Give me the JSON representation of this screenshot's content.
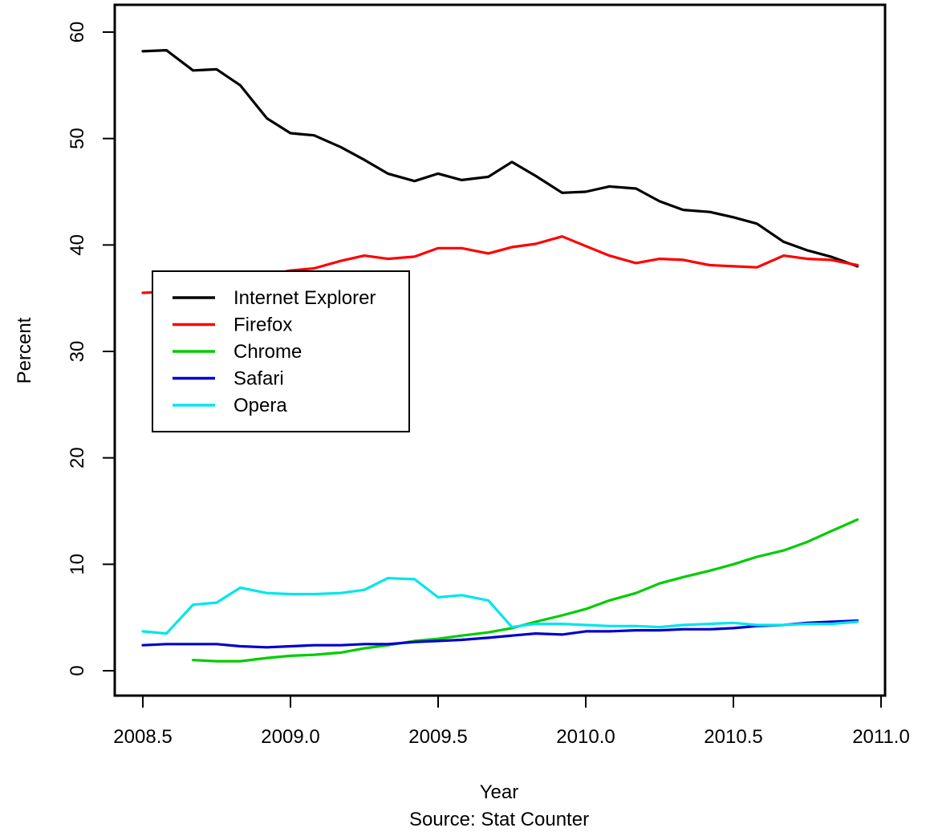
{
  "chart_data": {
    "type": "line",
    "xlabel": "Year",
    "ylabel": "Percent",
    "source": "Source: Stat Counter",
    "xlim": [
      2008.5,
      2011.0
    ],
    "ylim": [
      0,
      60
    ],
    "x_ticks": [
      2008.5,
      2009.0,
      2009.5,
      2010.0,
      2010.5,
      2011.0
    ],
    "x_tick_labels": [
      "2008.5",
      "2009.0",
      "2009.5",
      "2010.0",
      "2010.5",
      "2011.0"
    ],
    "y_ticks": [
      0,
      10,
      20,
      30,
      40,
      50,
      60
    ],
    "y_tick_labels": [
      "0",
      "10",
      "20",
      "30",
      "40",
      "50",
      "60"
    ],
    "grid": false,
    "legend_position": "upper-left",
    "series": [
      {
        "name": "Internet Explorer",
        "color": "#000000",
        "points": [
          [
            2008.5,
            58.2
          ],
          [
            2008.58,
            58.3
          ],
          [
            2008.67,
            56.4
          ],
          [
            2008.75,
            56.5
          ],
          [
            2008.83,
            55.0
          ],
          [
            2008.92,
            51.9
          ],
          [
            2009.0,
            50.5
          ],
          [
            2009.08,
            50.3
          ],
          [
            2009.17,
            49.2
          ],
          [
            2009.25,
            48.0
          ],
          [
            2009.33,
            46.7
          ],
          [
            2009.42,
            46.0
          ],
          [
            2009.5,
            46.7
          ],
          [
            2009.58,
            46.1
          ],
          [
            2009.67,
            46.4
          ],
          [
            2009.75,
            47.8
          ],
          [
            2009.83,
            46.5
          ],
          [
            2009.92,
            44.9
          ],
          [
            2010.0,
            45.0
          ],
          [
            2010.08,
            45.5
          ],
          [
            2010.17,
            45.3
          ],
          [
            2010.25,
            44.1
          ],
          [
            2010.33,
            43.3
          ],
          [
            2010.42,
            43.1
          ],
          [
            2010.5,
            42.6
          ],
          [
            2010.58,
            42.0
          ],
          [
            2010.67,
            40.3
          ],
          [
            2010.75,
            39.5
          ],
          [
            2010.83,
            38.9
          ],
          [
            2010.92,
            38.0
          ]
        ]
      },
      {
        "name": "Firefox",
        "color": "#ff0000",
        "points": [
          [
            2008.5,
            35.5
          ],
          [
            2008.58,
            35.6
          ],
          [
            2008.67,
            35.9
          ],
          [
            2008.75,
            36.2
          ],
          [
            2008.83,
            36.8
          ],
          [
            2008.92,
            37.2
          ],
          [
            2009.0,
            37.6
          ],
          [
            2009.08,
            37.8
          ],
          [
            2009.17,
            38.5
          ],
          [
            2009.25,
            39.0
          ],
          [
            2009.33,
            38.7
          ],
          [
            2009.42,
            38.9
          ],
          [
            2009.5,
            39.7
          ],
          [
            2009.58,
            39.7
          ],
          [
            2009.67,
            39.2
          ],
          [
            2009.75,
            39.8
          ],
          [
            2009.83,
            40.1
          ],
          [
            2009.92,
            40.8
          ],
          [
            2010.0,
            39.9
          ],
          [
            2010.08,
            39.0
          ],
          [
            2010.17,
            38.3
          ],
          [
            2010.25,
            38.7
          ],
          [
            2010.33,
            38.6
          ],
          [
            2010.42,
            38.1
          ],
          [
            2010.5,
            38.0
          ],
          [
            2010.58,
            37.9
          ],
          [
            2010.67,
            39.0
          ],
          [
            2010.75,
            38.7
          ],
          [
            2010.83,
            38.6
          ],
          [
            2010.92,
            38.1
          ]
        ]
      },
      {
        "name": "Chrome",
        "color": "#00cc00",
        "points": [
          [
            2008.67,
            1.0
          ],
          [
            2008.75,
            0.9
          ],
          [
            2008.83,
            0.9
          ],
          [
            2008.92,
            1.2
          ],
          [
            2009.0,
            1.4
          ],
          [
            2009.08,
            1.5
          ],
          [
            2009.17,
            1.7
          ],
          [
            2009.25,
            2.1
          ],
          [
            2009.33,
            2.4
          ],
          [
            2009.42,
            2.8
          ],
          [
            2009.5,
            3.0
          ],
          [
            2009.58,
            3.3
          ],
          [
            2009.67,
            3.6
          ],
          [
            2009.75,
            4.0
          ],
          [
            2009.83,
            4.6
          ],
          [
            2009.92,
            5.2
          ],
          [
            2010.0,
            5.8
          ],
          [
            2010.08,
            6.6
          ],
          [
            2010.17,
            7.3
          ],
          [
            2010.25,
            8.2
          ],
          [
            2010.33,
            8.8
          ],
          [
            2010.42,
            9.4
          ],
          [
            2010.5,
            10.0
          ],
          [
            2010.58,
            10.7
          ],
          [
            2010.67,
            11.3
          ],
          [
            2010.75,
            12.1
          ],
          [
            2010.83,
            13.1
          ],
          [
            2010.92,
            14.2
          ]
        ]
      },
      {
        "name": "Safari",
        "color": "#0000cc",
        "points": [
          [
            2008.5,
            2.4
          ],
          [
            2008.58,
            2.5
          ],
          [
            2008.67,
            2.5
          ],
          [
            2008.75,
            2.5
          ],
          [
            2008.83,
            2.3
          ],
          [
            2008.92,
            2.2
          ],
          [
            2009.0,
            2.3
          ],
          [
            2009.08,
            2.4
          ],
          [
            2009.17,
            2.4
          ],
          [
            2009.25,
            2.5
          ],
          [
            2009.33,
            2.5
          ],
          [
            2009.42,
            2.7
          ],
          [
            2009.5,
            2.8
          ],
          [
            2009.58,
            2.9
          ],
          [
            2009.67,
            3.1
          ],
          [
            2009.75,
            3.3
          ],
          [
            2009.83,
            3.5
          ],
          [
            2009.92,
            3.4
          ],
          [
            2010.0,
            3.7
          ],
          [
            2010.08,
            3.7
          ],
          [
            2010.17,
            3.8
          ],
          [
            2010.25,
            3.8
          ],
          [
            2010.33,
            3.9
          ],
          [
            2010.42,
            3.9
          ],
          [
            2010.5,
            4.0
          ],
          [
            2010.58,
            4.2
          ],
          [
            2010.67,
            4.3
          ],
          [
            2010.75,
            4.5
          ],
          [
            2010.83,
            4.6
          ],
          [
            2010.92,
            4.7
          ]
        ]
      },
      {
        "name": "Opera",
        "color": "#00e5ee",
        "points": [
          [
            2008.5,
            3.7
          ],
          [
            2008.58,
            3.5
          ],
          [
            2008.67,
            6.2
          ],
          [
            2008.75,
            6.4
          ],
          [
            2008.83,
            7.8
          ],
          [
            2008.92,
            7.3
          ],
          [
            2009.0,
            7.2
          ],
          [
            2009.08,
            7.2
          ],
          [
            2009.17,
            7.3
          ],
          [
            2009.25,
            7.6
          ],
          [
            2009.33,
            8.7
          ],
          [
            2009.42,
            8.6
          ],
          [
            2009.5,
            6.9
          ],
          [
            2009.58,
            7.1
          ],
          [
            2009.67,
            6.6
          ],
          [
            2009.75,
            4.1
          ],
          [
            2009.83,
            4.4
          ],
          [
            2009.92,
            4.4
          ],
          [
            2010.0,
            4.3
          ],
          [
            2010.08,
            4.2
          ],
          [
            2010.17,
            4.2
          ],
          [
            2010.25,
            4.1
          ],
          [
            2010.33,
            4.3
          ],
          [
            2010.42,
            4.4
          ],
          [
            2010.5,
            4.5
          ],
          [
            2010.58,
            4.3
          ],
          [
            2010.67,
            4.3
          ],
          [
            2010.75,
            4.4
          ],
          [
            2010.83,
            4.4
          ],
          [
            2010.92,
            4.6
          ]
        ]
      }
    ]
  }
}
